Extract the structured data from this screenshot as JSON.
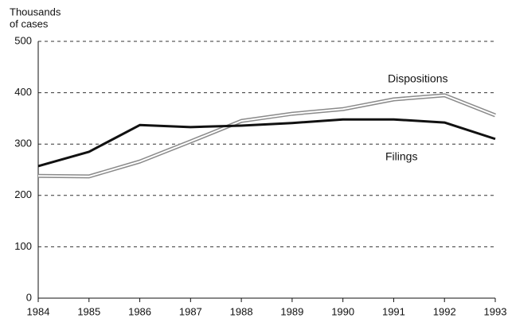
{
  "chart_data": {
    "type": "line",
    "y_label_lines": [
      "Thousands",
      "of cases"
    ],
    "x": [
      1984,
      1985,
      1986,
      1987,
      1988,
      1989,
      1990,
      1991,
      1992,
      1993
    ],
    "xlim": [
      1984,
      1993
    ],
    "xticks": [
      1984,
      1985,
      1986,
      1987,
      1988,
      1989,
      1990,
      1991,
      1992,
      1993
    ],
    "ylim": [
      0,
      500
    ],
    "yticks": [
      0,
      100,
      200,
      300,
      400,
      500
    ],
    "grid": true,
    "series": [
      {
        "name": "Dispositions",
        "color": "#8a8a8a",
        "style": "double",
        "values": [
          238,
          237,
          266,
          305,
          345,
          359,
          368,
          387,
          395,
          356
        ]
      },
      {
        "name": "Filings",
        "color": "#111111",
        "style": "solid",
        "values": [
          257,
          285,
          337,
          333,
          336,
          341,
          348,
          348,
          342,
          310
        ]
      }
    ]
  }
}
